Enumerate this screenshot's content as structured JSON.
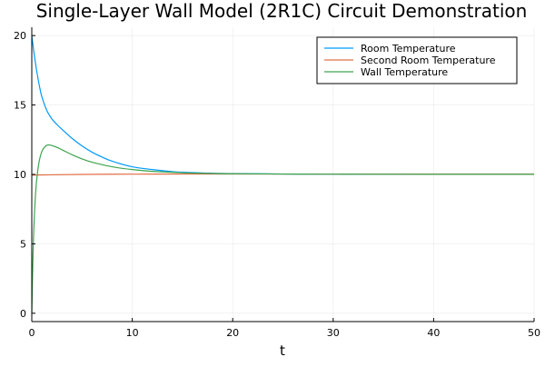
{
  "chart_data": {
    "type": "line",
    "title": "Single-Layer Wall Model (2R1C) Circuit Demonstration",
    "xlabel": "t",
    "ylabel": "",
    "xlim": [
      0,
      50
    ],
    "ylim": [
      -0.6,
      20.6
    ],
    "xticks": [
      0,
      10,
      20,
      30,
      40,
      50
    ],
    "yticks": [
      0,
      5,
      10,
      15,
      20
    ],
    "grid": true,
    "legend_position": "top-right",
    "series": [
      {
        "name": "Room Temperature",
        "color": "#009AFA",
        "x": [
          0,
          0.25,
          0.5,
          0.75,
          1,
          1.5,
          2,
          2.5,
          3,
          4,
          5,
          6,
          7,
          8,
          10,
          12,
          14,
          16,
          18,
          20,
          25,
          30,
          40,
          50
        ],
        "y": [
          20,
          18.6,
          17.4,
          16.4,
          15.6,
          14.6,
          14.0,
          13.6,
          13.25,
          12.6,
          12.05,
          11.6,
          11.25,
          10.95,
          10.55,
          10.35,
          10.2,
          10.13,
          10.08,
          10.06,
          10.03,
          10.02,
          10.01,
          10.01
        ]
      },
      {
        "name": "Second Room Temperature",
        "color": "#E36F47",
        "x": [
          0,
          2,
          5,
          10,
          15,
          20,
          30,
          40,
          50
        ],
        "y": [
          9.95,
          9.97,
          10.0,
          10.02,
          10.03,
          10.03,
          10.03,
          10.03,
          10.03
        ]
      },
      {
        "name": "Wall Temperature",
        "color": "#3DA44D",
        "x": [
          0,
          0.1,
          0.2,
          0.35,
          0.5,
          0.75,
          1,
          1.25,
          1.5,
          1.75,
          2,
          2.5,
          3,
          4,
          5,
          6,
          8,
          10,
          12,
          15,
          18,
          20,
          25,
          30,
          40,
          50
        ],
        "y": [
          0,
          3.5,
          6.0,
          8.3,
          9.7,
          11.0,
          11.65,
          11.95,
          12.1,
          12.12,
          12.08,
          11.95,
          11.78,
          11.42,
          11.12,
          10.88,
          10.55,
          10.35,
          10.22,
          10.12,
          10.07,
          10.05,
          10.03,
          10.02,
          10.01,
          10.01
        ]
      }
    ]
  }
}
